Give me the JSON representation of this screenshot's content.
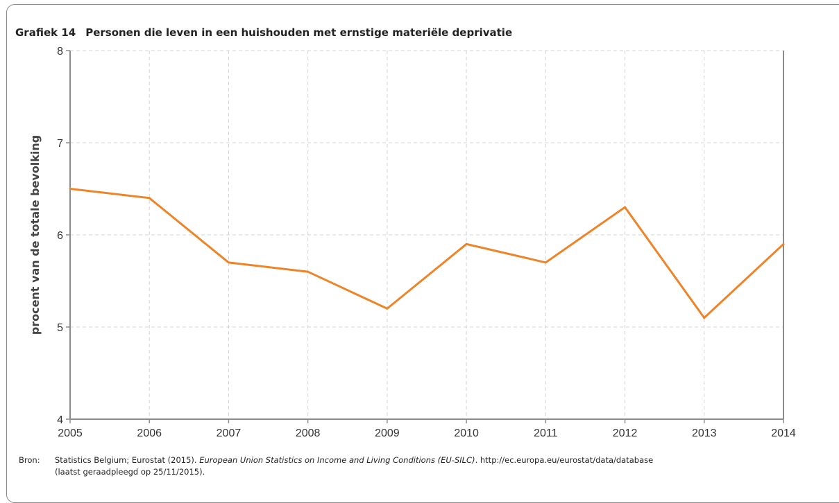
{
  "figure": {
    "number": "Grafiek 14",
    "title": "Personen die leven in een huishouden met ernstige materiële deprivatie"
  },
  "chart_data": {
    "type": "line",
    "x": [
      "2005",
      "2006",
      "2007",
      "2008",
      "2009",
      "2010",
      "2011",
      "2012",
      "2013",
      "2014"
    ],
    "series": [
      {
        "values": [
          6.5,
          6.4,
          5.7,
          5.6,
          5.2,
          5.9,
          5.7,
          6.3,
          5.1,
          5.9
        ]
      }
    ],
    "ylabel": "procent van de totale bevolking",
    "ylim": [
      4,
      8
    ],
    "yticks": [
      "4",
      "5",
      "6",
      "7",
      "8"
    ],
    "grid": true,
    "line_color": "#ee8428"
  },
  "source": {
    "label": "Bron:",
    "part1": "Statistics Belgium; Eurostat (2015). ",
    "italic": "European Union Statistics on Income and Living Conditions (EU-SILC)",
    "part2": ". http://ec.europa.eu/eurostat/data/database",
    "line2": "(laatst geraadpleegd op 25/11/2015)."
  }
}
